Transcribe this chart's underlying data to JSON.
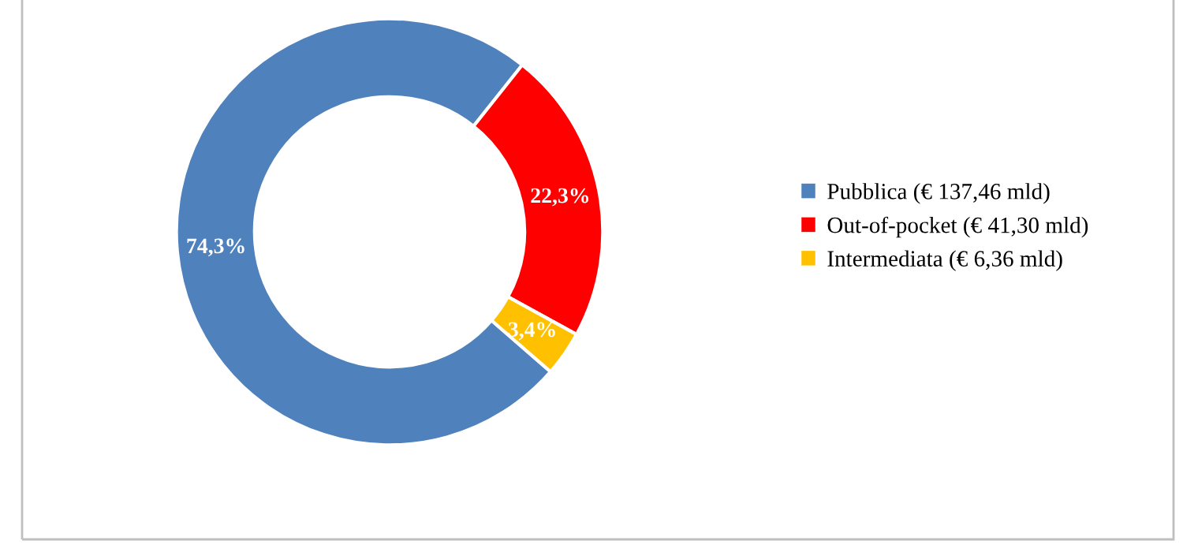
{
  "chart_data": {
    "type": "donut",
    "categories": [
      "Pubblica (€ 137,46 mld)",
      "Out-of-pocket (€ 41,30 mld)",
      "Intermediata (€ 6,36 mld)"
    ],
    "values": [
      74.3,
      22.3,
      3.4
    ],
    "colors": [
      "#4f81bd",
      "#ff0000",
      "#ffc000"
    ],
    "value_labels": [
      "74,3%",
      "22,3%",
      "3,4%"
    ],
    "legend": "right"
  }
}
